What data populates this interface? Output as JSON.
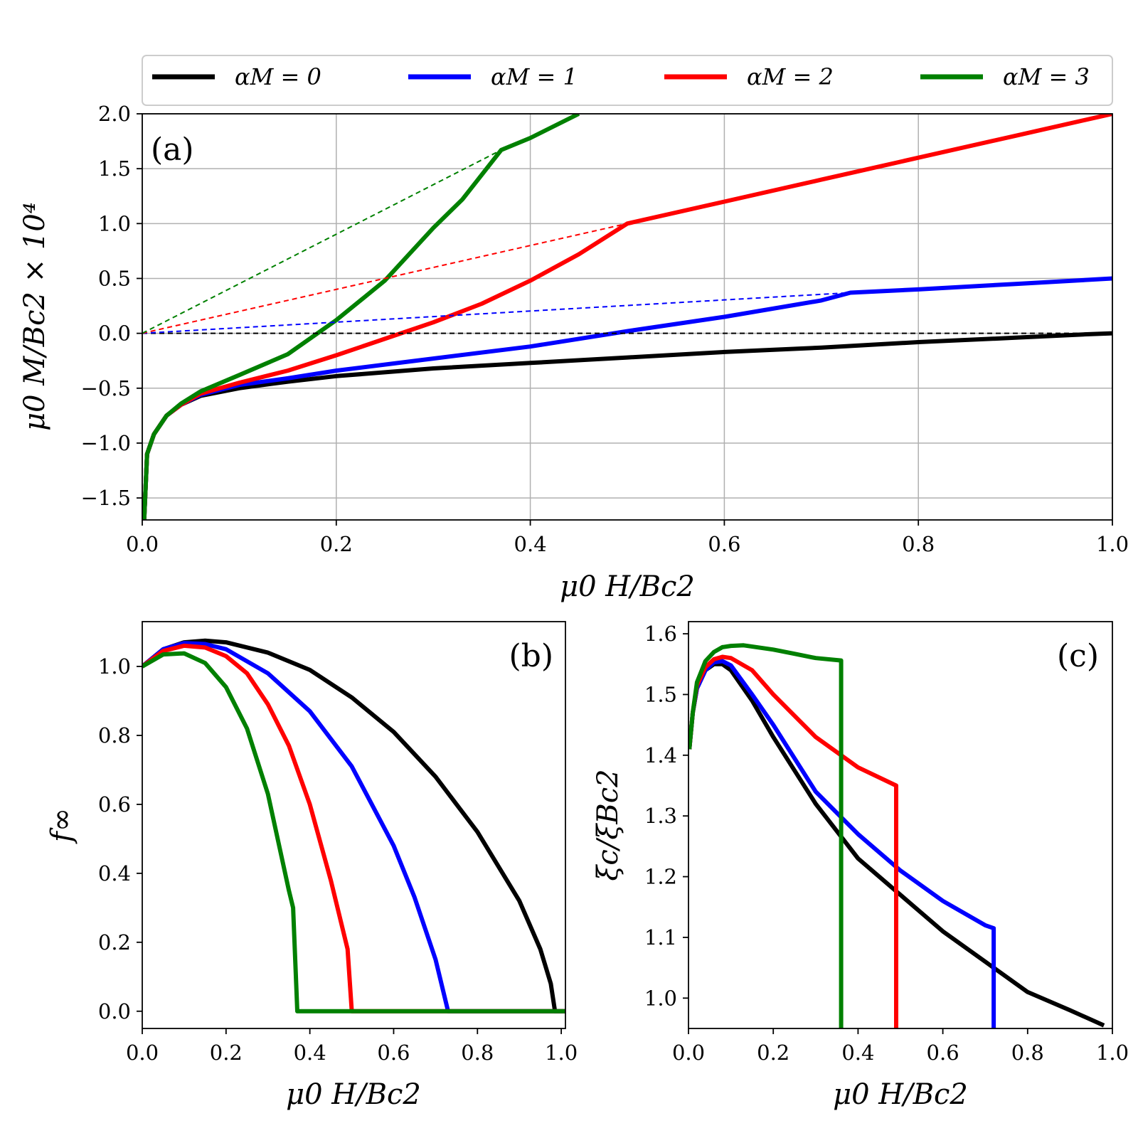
{
  "legend": {
    "entries": [
      {
        "label": "αM = 0",
        "color": "#000000"
      },
      {
        "label": "αM = 1",
        "color": "#0000ff"
      },
      {
        "label": "αM = 2",
        "color": "#ff0000"
      },
      {
        "label": "αM = 3",
        "color": "#008000"
      }
    ]
  },
  "chart_data": [
    {
      "id": "a",
      "type": "line",
      "panel_label": "(a)",
      "xlabel": "μ0 H/Bc2",
      "ylabel": "μ0 M/Bc2 × 10⁴",
      "xlim": [
        0.0,
        1.0
      ],
      "ylim": [
        -1.7,
        2.0
      ],
      "grid": true,
      "xticks": [
        0.0,
        0.2,
        0.4,
        0.6,
        0.8,
        1.0
      ],
      "xtick_labels": [
        "0.0",
        "0.2",
        "0.4",
        "0.6",
        "0.8",
        "1.0"
      ],
      "yticks": [
        -1.5,
        -1.0,
        -0.5,
        0.0,
        0.5,
        1.0,
        1.5,
        2.0
      ],
      "ytick_labels": [
        "−1.5",
        "−1.0",
        "−0.5",
        "0.0",
        "0.5",
        "1.0",
        "1.5",
        "2.0"
      ],
      "series": [
        {
          "name": "αM = 0",
          "color": "#000000",
          "style": "solid",
          "x": [
            0.002,
            0.005,
            0.012,
            0.025,
            0.04,
            0.06,
            0.1,
            0.15,
            0.2,
            0.3,
            0.4,
            0.5,
            0.6,
            0.7,
            0.8,
            0.9,
            0.97,
            1.0
          ],
          "y": [
            -1.7,
            -1.1,
            -0.92,
            -0.75,
            -0.65,
            -0.57,
            -0.5,
            -0.44,
            -0.39,
            -0.32,
            -0.27,
            -0.22,
            -0.17,
            -0.13,
            -0.08,
            -0.04,
            -0.01,
            0.0
          ]
        },
        {
          "name": "αM = 1",
          "color": "#0000ff",
          "style": "solid",
          "x": [
            0.002,
            0.005,
            0.012,
            0.025,
            0.04,
            0.06,
            0.1,
            0.15,
            0.2,
            0.3,
            0.4,
            0.5,
            0.6,
            0.7,
            0.73,
            0.8,
            0.9,
            1.0
          ],
          "y": [
            -1.7,
            -1.1,
            -0.92,
            -0.75,
            -0.65,
            -0.56,
            -0.47,
            -0.41,
            -0.34,
            -0.23,
            -0.12,
            0.02,
            0.15,
            0.3,
            0.37,
            0.4,
            0.45,
            0.5
          ]
        },
        {
          "name": "αM = 2",
          "color": "#ff0000",
          "style": "solid",
          "x": [
            0.002,
            0.005,
            0.012,
            0.025,
            0.04,
            0.06,
            0.1,
            0.15,
            0.2,
            0.25,
            0.3,
            0.35,
            0.4,
            0.45,
            0.5,
            0.6,
            0.7,
            0.8,
            0.9,
            1.0
          ],
          "y": [
            -1.7,
            -1.1,
            -0.92,
            -0.75,
            -0.65,
            -0.55,
            -0.45,
            -0.34,
            -0.2,
            -0.05,
            0.1,
            0.27,
            0.48,
            0.72,
            1.0,
            1.2,
            1.4,
            1.6,
            1.8,
            2.0
          ]
        },
        {
          "name": "αM = 3",
          "color": "#008000",
          "style": "solid",
          "x": [
            0.002,
            0.005,
            0.012,
            0.025,
            0.04,
            0.06,
            0.1,
            0.15,
            0.2,
            0.25,
            0.3,
            0.33,
            0.37,
            0.4,
            0.45
          ],
          "y": [
            -1.7,
            -1.1,
            -0.92,
            -0.75,
            -0.64,
            -0.53,
            -0.38,
            -0.19,
            0.12,
            0.48,
            0.96,
            1.22,
            1.67,
            1.78,
            2.0
          ]
        },
        {
          "name": "αM = 0 linear",
          "color": "#000000",
          "style": "dashed",
          "x": [
            0.0,
            1.0
          ],
          "y": [
            0.0,
            0.0
          ]
        },
        {
          "name": "αM = 1 linear",
          "color": "#0000ff",
          "style": "dashed",
          "x": [
            0.0,
            0.73
          ],
          "y": [
            0.0,
            0.37
          ]
        },
        {
          "name": "αM = 2 linear",
          "color": "#ff0000",
          "style": "dashed",
          "x": [
            0.0,
            0.5
          ],
          "y": [
            0.0,
            1.0
          ]
        },
        {
          "name": "αM = 3 linear",
          "color": "#008000",
          "style": "dashed",
          "x": [
            0.0,
            0.37
          ],
          "y": [
            0.0,
            1.67
          ]
        }
      ]
    },
    {
      "id": "b",
      "type": "line",
      "panel_label": "(b)",
      "xlabel": "μ0 H/Bc2",
      "ylabel": "f∞",
      "xlim": [
        0.0,
        1.01
      ],
      "ylim": [
        -0.05,
        1.13
      ],
      "grid": false,
      "xticks": [
        0.0,
        0.2,
        0.4,
        0.6,
        0.8,
        1.0
      ],
      "xtick_labels": [
        "0.0",
        "0.2",
        "0.4",
        "0.6",
        "0.8",
        "1.0"
      ],
      "yticks": [
        0.0,
        0.2,
        0.4,
        0.6,
        0.8,
        1.0
      ],
      "ytick_labels": [
        "0.0",
        "0.2",
        "0.4",
        "0.6",
        "0.8",
        "1.0"
      ],
      "series": [
        {
          "name": "αM = 0",
          "color": "#000000",
          "style": "solid",
          "x": [
            0.0,
            0.05,
            0.1,
            0.15,
            0.2,
            0.3,
            0.4,
            0.5,
            0.6,
            0.7,
            0.8,
            0.9,
            0.95,
            0.975,
            0.985,
            1.01
          ],
          "y": [
            1.0,
            1.05,
            1.07,
            1.075,
            1.07,
            1.04,
            0.99,
            0.91,
            0.81,
            0.68,
            0.52,
            0.32,
            0.18,
            0.08,
            0.0,
            0.0
          ]
        },
        {
          "name": "αM = 1",
          "color": "#0000ff",
          "style": "solid",
          "x": [
            0.0,
            0.05,
            0.1,
            0.15,
            0.2,
            0.3,
            0.4,
            0.5,
            0.6,
            0.65,
            0.7,
            0.73,
            1.01
          ],
          "y": [
            1.0,
            1.05,
            1.068,
            1.065,
            1.05,
            0.98,
            0.87,
            0.71,
            0.48,
            0.33,
            0.15,
            0.0,
            0.0
          ]
        },
        {
          "name": "αM = 2",
          "color": "#ff0000",
          "style": "solid",
          "x": [
            0.0,
            0.05,
            0.1,
            0.15,
            0.2,
            0.25,
            0.3,
            0.35,
            0.4,
            0.45,
            0.49,
            0.5,
            1.01
          ],
          "y": [
            1.0,
            1.045,
            1.06,
            1.055,
            1.03,
            0.98,
            0.89,
            0.77,
            0.6,
            0.38,
            0.18,
            0.0,
            0.0
          ]
        },
        {
          "name": "αM = 3",
          "color": "#008000",
          "style": "solid",
          "x": [
            0.0,
            0.05,
            0.1,
            0.15,
            0.2,
            0.25,
            0.3,
            0.35,
            0.36,
            0.37,
            1.01
          ],
          "y": [
            1.0,
            1.035,
            1.038,
            1.01,
            0.94,
            0.82,
            0.63,
            0.35,
            0.3,
            0.0,
            0.0
          ]
        }
      ]
    },
    {
      "id": "c",
      "type": "line",
      "panel_label": "(c)",
      "xlabel": "μ0 H/Bc2",
      "ylabel": "ξc/ξBc2",
      "xlim": [
        0.0,
        1.0
      ],
      "ylim": [
        0.95,
        1.62
      ],
      "grid": false,
      "xticks": [
        0.0,
        0.2,
        0.4,
        0.6,
        0.8,
        1.0
      ],
      "xtick_labels": [
        "0.0",
        "0.2",
        "0.4",
        "0.6",
        "0.8",
        "1.0"
      ],
      "yticks": [
        1.0,
        1.1,
        1.2,
        1.3,
        1.4,
        1.5,
        1.6
      ],
      "ytick_labels": [
        "1.0",
        "1.1",
        "1.2",
        "1.3",
        "1.4",
        "1.5",
        "1.6"
      ],
      "series": [
        {
          "name": "αM = 0",
          "color": "#000000",
          "style": "solid",
          "x": [
            0.002,
            0.01,
            0.02,
            0.04,
            0.06,
            0.08,
            0.1,
            0.15,
            0.2,
            0.3,
            0.4,
            0.5,
            0.6,
            0.7,
            0.8,
            0.9,
            0.98
          ],
          "y": [
            1.41,
            1.47,
            1.51,
            1.54,
            1.55,
            1.55,
            1.54,
            1.49,
            1.43,
            1.32,
            1.23,
            1.17,
            1.11,
            1.06,
            1.01,
            0.98,
            0.955
          ]
        },
        {
          "name": "αM = 1",
          "color": "#0000ff",
          "style": "solid",
          "x": [
            0.002,
            0.01,
            0.02,
            0.04,
            0.06,
            0.08,
            0.1,
            0.15,
            0.2,
            0.3,
            0.4,
            0.5,
            0.6,
            0.7,
            0.72,
            0.72
          ],
          "y": [
            1.41,
            1.47,
            1.51,
            1.54,
            1.553,
            1.555,
            1.548,
            1.5,
            1.45,
            1.34,
            1.27,
            1.21,
            1.16,
            1.12,
            1.115,
            0.95
          ]
        },
        {
          "name": "αM = 2",
          "color": "#ff0000",
          "style": "solid",
          "x": [
            0.002,
            0.01,
            0.02,
            0.04,
            0.06,
            0.08,
            0.1,
            0.15,
            0.2,
            0.3,
            0.4,
            0.49,
            0.49
          ],
          "y": [
            1.41,
            1.47,
            1.515,
            1.545,
            1.558,
            1.562,
            1.56,
            1.54,
            1.5,
            1.43,
            1.38,
            1.35,
            0.95
          ]
        },
        {
          "name": "αM = 3",
          "color": "#008000",
          "style": "solid",
          "x": [
            0.002,
            0.01,
            0.02,
            0.04,
            0.06,
            0.08,
            0.1,
            0.13,
            0.2,
            0.25,
            0.3,
            0.36,
            0.36
          ],
          "y": [
            1.41,
            1.47,
            1.52,
            1.555,
            1.57,
            1.578,
            1.58,
            1.581,
            1.574,
            1.567,
            1.56,
            1.556,
            0.95
          ]
        }
      ]
    }
  ]
}
